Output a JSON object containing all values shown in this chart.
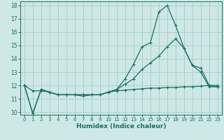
{
  "xlabel": "Humidex (Indice chaleur)",
  "background_color": "#cde8e5",
  "grid_color": "#aad0cc",
  "line_color": "#1a6e65",
  "xlim": [
    -0.5,
    23.5
  ],
  "ylim": [
    9.8,
    18.3
  ],
  "xticks": [
    0,
    1,
    2,
    3,
    4,
    5,
    6,
    7,
    8,
    9,
    10,
    11,
    12,
    13,
    14,
    15,
    16,
    17,
    18,
    19,
    20,
    21,
    22,
    23
  ],
  "yticks": [
    10,
    11,
    12,
    13,
    14,
    15,
    16,
    17,
    18
  ],
  "line1_x": [
    0,
    1,
    2,
    3,
    4,
    5,
    6,
    7,
    8,
    9,
    10,
    11,
    12,
    13,
    14,
    15,
    16,
    17,
    18,
    19,
    20,
    21,
    22,
    23
  ],
  "line1_y": [
    12.0,
    9.9,
    11.7,
    11.5,
    11.3,
    11.3,
    11.3,
    11.3,
    11.3,
    11.3,
    11.5,
    11.7,
    12.5,
    13.6,
    14.9,
    15.2,
    17.5,
    18.0,
    16.5,
    14.8,
    13.5,
    13.3,
    12.0,
    11.9
  ],
  "line2_x": [
    0,
    1,
    2,
    3,
    4,
    5,
    6,
    7,
    8,
    9,
    10,
    11,
    12,
    13,
    14,
    15,
    16,
    17,
    18,
    19,
    20,
    21,
    22,
    23
  ],
  "line2_y": [
    12.0,
    9.9,
    11.7,
    11.5,
    11.3,
    11.3,
    11.3,
    11.2,
    11.3,
    11.3,
    11.5,
    11.7,
    12.1,
    12.5,
    13.2,
    13.7,
    14.2,
    14.9,
    15.5,
    14.8,
    13.5,
    13.0,
    11.9,
    11.9
  ],
  "line3_x": [
    0,
    1,
    2,
    3,
    4,
    5,
    6,
    7,
    8,
    9,
    10,
    11,
    12,
    13,
    14,
    15,
    16,
    17,
    18,
    19,
    20,
    21,
    22,
    23
  ],
  "line3_y": [
    12.0,
    11.6,
    11.6,
    11.5,
    11.3,
    11.3,
    11.3,
    11.3,
    11.3,
    11.3,
    11.5,
    11.6,
    11.65,
    11.7,
    11.75,
    11.8,
    11.8,
    11.85,
    11.85,
    11.9,
    11.9,
    11.95,
    12.0,
    12.0
  ]
}
